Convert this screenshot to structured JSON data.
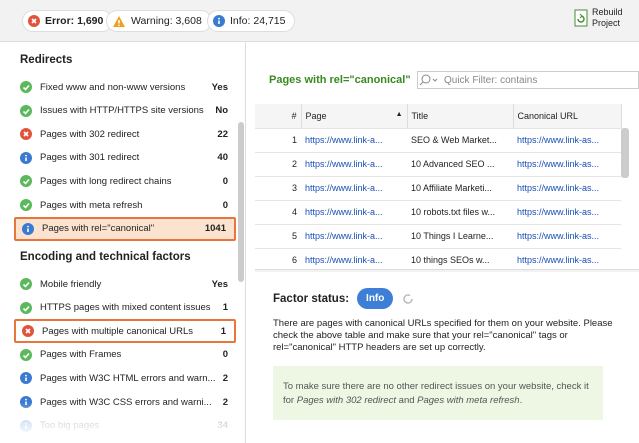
{
  "header": {
    "error": "Error: 1,690",
    "warning": "Warning: 3,608",
    "info": "Info: 24,715",
    "rebuild": [
      "Rebuild",
      "Project"
    ]
  },
  "sidebar": {
    "sections": [
      {
        "title": "Redirects",
        "items": [
          {
            "label": "Fixed www and non-www versions",
            "value": "Yes"
          },
          {
            "label": "Issues with HTTP/HTTPS site versions",
            "value": "No"
          },
          {
            "label": "Pages with 302 redirect",
            "value": "22"
          },
          {
            "label": "Pages with 301 redirect",
            "value": "40"
          },
          {
            "label": "Pages with long redirect chains",
            "value": "0"
          },
          {
            "label": "Pages with meta refresh",
            "value": "0"
          },
          {
            "label": "Pages with rel=\"canonical\"",
            "value": "1041"
          }
        ]
      },
      {
        "title": "Encoding and technical factors",
        "items": [
          {
            "label": "Mobile friendly",
            "value": "Yes"
          },
          {
            "label": "HTTPS pages with mixed content issues",
            "value": "1"
          },
          {
            "label": "Pages with multiple canonical URLs",
            "value": "1"
          },
          {
            "label": "Pages with Frames",
            "value": "0"
          },
          {
            "label": "Pages with W3C HTML errors and warn...",
            "value": "2"
          },
          {
            "label": "Pages with W3C CSS errors and warni...",
            "value": "2"
          },
          {
            "label": "Too big pages",
            "value": "34"
          }
        ]
      }
    ]
  },
  "panel": {
    "title": "Pages with rel=\"canonical\"",
    "filter_placeholder": "Quick Filter: contains",
    "table": {
      "columns": [
        "#",
        "Page",
        "Title",
        "Canonical URL"
      ],
      "rows": [
        [
          "1",
          "https://www.link-a...",
          "SEO & Web Market...",
          "https://www.link-as..."
        ],
        [
          "2",
          "https://www.link-a...",
          "10 Advanced SEO ...",
          "https://www.link-as..."
        ],
        [
          "3",
          "https://www.link-a...",
          "10 Affiliate Marketi...",
          "https://www.link-as..."
        ],
        [
          "4",
          "https://www.link-a...",
          "10 robots.txt files w...",
          "https://www.link-as..."
        ],
        [
          "5",
          "https://www.link-a...",
          "10 Things I Learne...",
          "https://www.link-as..."
        ],
        [
          "6",
          "https://www.link-a...",
          "10 things SEOs w...",
          "https://www.link-as..."
        ]
      ]
    }
  },
  "factor": {
    "label": "Factor status:",
    "status": "Info",
    "description": "There are pages with canonical URLs specified for them on your website. Please check the above table and make sure that your rel=\"canonical\" tags or rel=\"canonical\" HTTP headers are set up correctly.",
    "note": [
      "To make sure there are no other redirect issues on your website, check it for ",
      "Pages with 302 redirect",
      " and ",
      "Pages with meta refresh",
      "."
    ]
  }
}
